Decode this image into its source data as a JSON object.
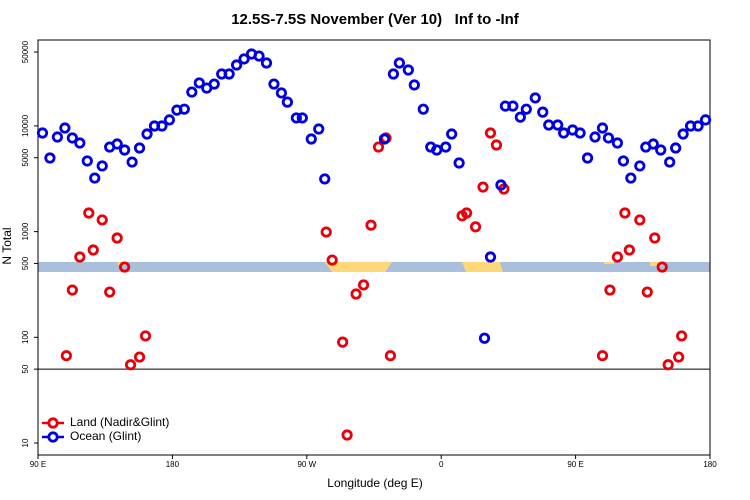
{
  "chart_data": {
    "type": "scatter",
    "title": "12.5S-7.5S November (Ver 10)   Inf to -Inf",
    "xlabel": "Longitude (deg E)",
    "ylabel": "N Total",
    "xlim": [
      90,
      540
    ],
    "xticks": [
      {
        "value": 90,
        "label": "90 E"
      },
      {
        "value": 180,
        "label": "180"
      },
      {
        "value": 270,
        "label": "90 W"
      },
      {
        "value": 360,
        "label": "0"
      },
      {
        "value": 450,
        "label": "90 E"
      },
      {
        "value": 540,
        "label": "180"
      }
    ],
    "ylim": [
      7.7,
      65000
    ],
    "yticks": [
      10,
      50,
      100,
      500,
      1000,
      5000,
      10000,
      50000
    ],
    "log_y": true,
    "hline": 50,
    "legend": "bottom left",
    "series": [
      {
        "name": "Land (Nadir&Glint)",
        "color": "#e8000b",
        "x": [
          109,
          113,
          118,
          124,
          127,
          133,
          138,
          143,
          148,
          152,
          158,
          162,
          283,
          287,
          294,
          297,
          303,
          308,
          313,
          318,
          323,
          326,
          374,
          377,
          383,
          388,
          393,
          397,
          402,
          468,
          473,
          478,
          483,
          486,
          493,
          498,
          503,
          508,
          512,
          519,
          521
        ],
        "values": [
          67,
          280,
          575,
          1500,
          670,
          1290,
          268,
          870,
          462,
          55,
          65,
          103,
          990,
          538,
          90,
          11.9,
          257,
          313,
          1150,
          6310,
          7690,
          67,
          1410,
          1500,
          1110,
          2640,
          8570,
          6600,
          2530,
          67,
          280,
          575,
          1500,
          670,
          1290,
          268,
          870,
          462,
          55,
          65,
          103
        ]
      },
      {
        "name": "Ocean (Glint)",
        "color": "#0000e0",
        "x": [
          93,
          98,
          103,
          108,
          113,
          118,
          123,
          128,
          133,
          138,
          143,
          148,
          153,
          158,
          163,
          168,
          173,
          178,
          183,
          188,
          193,
          198,
          203,
          208,
          213,
          218,
          223,
          228,
          233,
          238,
          243,
          248,
          253,
          257,
          263,
          267,
          273,
          278,
          282,
          322,
          328,
          332,
          338,
          342,
          348,
          353,
          357,
          363,
          367,
          372,
          389,
          393,
          400,
          403,
          408,
          413,
          417,
          423,
          428,
          432,
          438,
          442,
          448,
          453,
          458,
          463,
          468,
          472,
          478,
          482,
          487,
          493,
          497,
          502,
          507,
          513,
          517,
          522,
          527,
          532,
          537
        ],
        "values": [
          8570,
          4970,
          7850,
          9550,
          7690,
          6890,
          4660,
          3210,
          4180,
          6310,
          6740,
          5920,
          4550,
          6180,
          8380,
          9980,
          9980,
          11400,
          14100,
          14400,
          20900,
          25500,
          22800,
          24900,
          31000,
          31000,
          37700,
          43000,
          47900,
          45800,
          39400,
          24900,
          20500,
          16800,
          11900,
          11900,
          7520,
          9350,
          3150,
          7520,
          31000,
          39400,
          33800,
          24400,
          14400,
          6310,
          5920,
          6310,
          8380,
          4460,
          98,
          575,
          2760,
          15400,
          15400,
          12100,
          14400,
          18400,
          13500,
          10200,
          10200,
          8570,
          9150,
          8570,
          4970,
          7850,
          9550,
          7690,
          6890,
          4660,
          3210,
          4180,
          6310,
          6740,
          5920,
          4550,
          6180,
          8380,
          9980,
          9980,
          11400
        ]
      }
    ]
  }
}
